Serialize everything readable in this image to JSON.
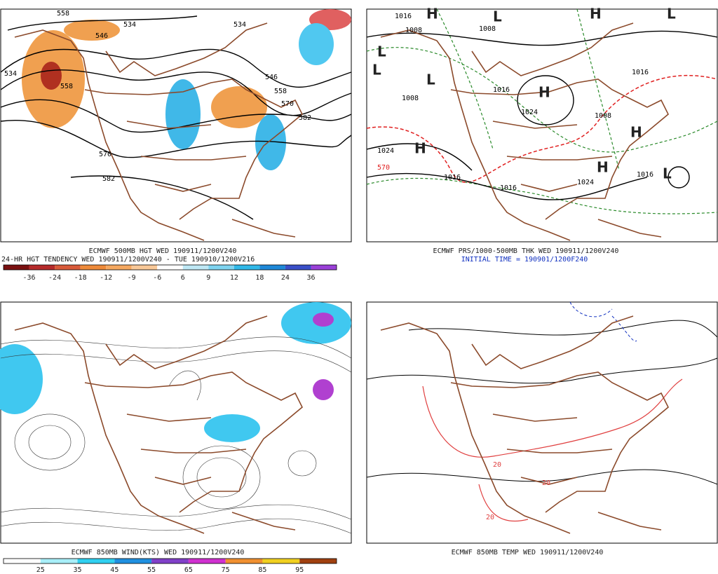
{
  "panels": [
    {
      "caption": [
        "ECMWF 500MB HGT WED 190911/1200V240",
        "24-HR HGT TENDENCY WED 190911/1200V240 - TUE 190910/1200V216"
      ],
      "colorbar": {
        "colors": [
          "#7a1010",
          "#b52a2a",
          "#d85a3a",
          "#ee8a3a",
          "#f5a860",
          "#f8c898",
          "#ffffff",
          "#bfe8f5",
          "#7fd4f0",
          "#30b8e8",
          "#1e88d8",
          "#3a4fc8",
          "#9a40d8"
        ],
        "labels": [
          -36,
          -24,
          -18,
          -12,
          -9,
          -6,
          6,
          9,
          12,
          18,
          24,
          36
        ]
      },
      "contour_labels": [
        558,
        534,
        546,
        534,
        534,
        546,
        558,
        570,
        582,
        570,
        582,
        558
      ]
    },
    {
      "caption": [
        "ECMWF PRS/1000-500MB THK WED 190911/1200V240",
        "INITIAL TIME = 190901/1200F240"
      ],
      "centers": [
        "H",
        "H",
        "L",
        "L",
        "L",
        "L",
        "H",
        "H",
        "H",
        "H",
        "L",
        "L"
      ],
      "contour_labels": [
        1016,
        1008,
        1008,
        1016,
        1024,
        1024,
        1016,
        1008,
        1016,
        1016,
        1024,
        1016,
        1008,
        570
      ]
    },
    {
      "caption": [
        "ECMWF 850MB WIND(KTS) WED 190911/1200V240"
      ],
      "colorbar": {
        "colors": [
          "#ffffff",
          "#a8eef8",
          "#30d0f0",
          "#2090e0",
          "#8040c8",
          "#d030d0",
          "#f09030",
          "#f0d020",
          "#a04010"
        ],
        "labels": [
          25,
          35,
          45,
          55,
          65,
          75,
          85,
          95
        ]
      }
    },
    {
      "caption": [
        "ECMWF 850MB TEMP WED 190911/1200V240"
      ],
      "contour_labels": [
        20,
        20,
        20
      ]
    }
  ]
}
